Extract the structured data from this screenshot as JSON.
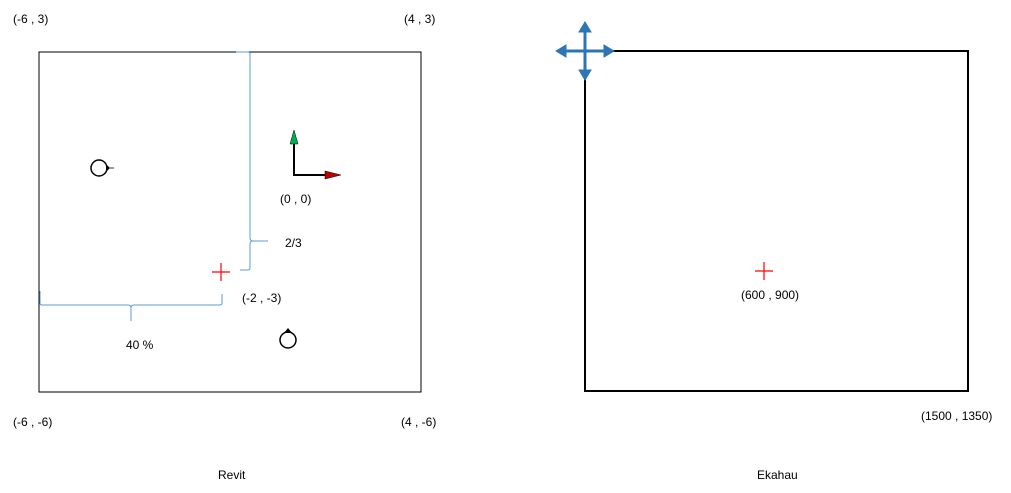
{
  "revit": {
    "caption": "Revit",
    "corner_top_left": "(-6 , 3)",
    "corner_top_right": "(4 , 3)",
    "corner_bottom_left": "(-6 , -6)",
    "corner_bottom_right": "(4 , -6)",
    "origin_label": "(0 , 0)",
    "point_label": "(-2 , -3)",
    "vertical_fraction": "2/3",
    "horizontal_fraction": "40 %"
  },
  "ekahau": {
    "caption": "Ekahau",
    "point_label": "(600 , 900)",
    "corner_bottom_right": "(1500 , 1350)"
  },
  "colors": {
    "frame": "#000000",
    "brace": "#5b9bd5",
    "marker": "#ff0000",
    "axis_x": "#c00000",
    "axis_y": "#00b050",
    "move_icon": "#2e75b6"
  }
}
